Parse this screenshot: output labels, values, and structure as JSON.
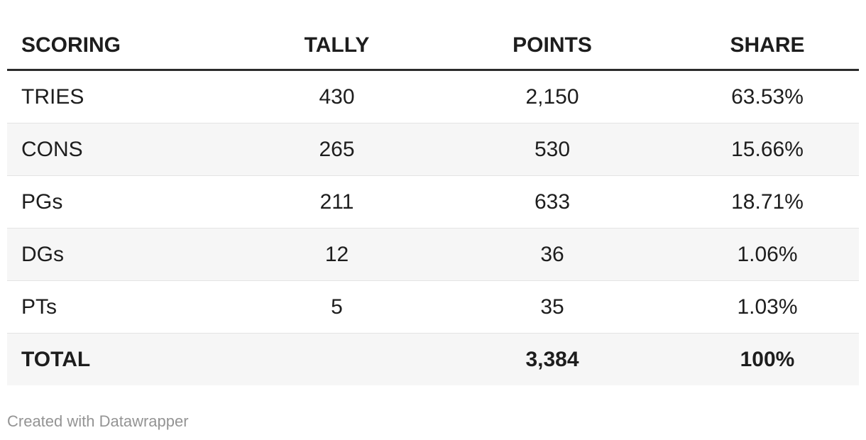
{
  "chart_data": {
    "type": "table",
    "columns": [
      "SCORING",
      "TALLY",
      "POINTS",
      "SHARE"
    ],
    "rows": [
      [
        "TRIES",
        "430",
        "2,150",
        "63.53%"
      ],
      [
        "CONS",
        "265",
        "530",
        "15.66%"
      ],
      [
        "PGs",
        "211",
        "633",
        "18.71%"
      ],
      [
        "DGs",
        "12",
        "36",
        "1.06%"
      ],
      [
        "PTs",
        "5",
        "35",
        "1.03%"
      ],
      [
        "TOTAL",
        "",
        "3,384",
        "100%"
      ]
    ],
    "layout": {
      "first_column_align": "left",
      "value_columns_align": "center",
      "striped_row_indices": [
        1,
        3,
        5
      ],
      "total_row_index": 5
    }
  },
  "footer": {
    "attribution": "Created with Datawrapper"
  },
  "colors": {
    "background": "#ffffff",
    "text": "#1d1d1d",
    "header_rule": "#2b2b2b",
    "row_divider": "#e4e4e4",
    "stripe": "#f6f6f6",
    "attribution": "#949494"
  }
}
